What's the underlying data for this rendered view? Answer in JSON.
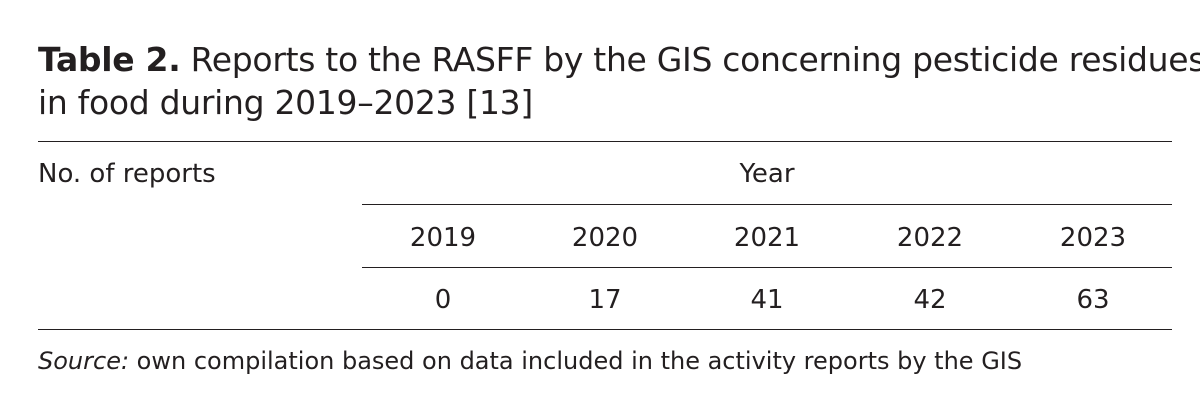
{
  "caption": {
    "label": "Table 2.",
    "line1": " Reports to the RASFF by the GIS concerning pesticide residues",
    "line2": "in food during 2019–2023 [13]"
  },
  "table": {
    "row_header": "No. of reports",
    "group_header": "Year",
    "years": [
      "2019",
      "2020",
      "2021",
      "2022",
      "2023"
    ],
    "values": [
      "0",
      "17",
      "41",
      "42",
      "63"
    ]
  },
  "source": {
    "label": "Source:",
    "text": " own compilation based on data included in the activity reports by the GIS"
  }
}
